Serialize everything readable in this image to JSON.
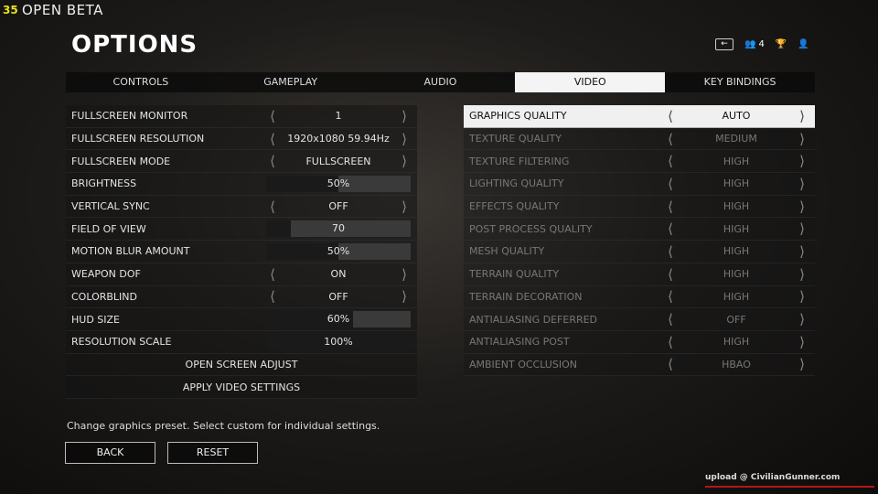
{
  "overlay": {
    "beta": "OPEN BETA",
    "fps": "35"
  },
  "header": {
    "title": "OPTIONS",
    "back_icon": "back-arrow-icon",
    "squad_count": "4"
  },
  "tabs": [
    {
      "label": "CONTROLS"
    },
    {
      "label": "GAMEPLAY"
    },
    {
      "label": "AUDIO"
    },
    {
      "label": "VIDEO",
      "selected": true
    },
    {
      "label": "KEY BINDINGS"
    }
  ],
  "left": [
    {
      "label": "FULLSCREEN MONITOR",
      "type": "select",
      "value": "1"
    },
    {
      "label": "FULLSCREEN RESOLUTION",
      "type": "select",
      "value": "1920x1080 59.94Hz"
    },
    {
      "label": "FULLSCREEN MODE",
      "type": "select",
      "value": "FULLSCREEN"
    },
    {
      "label": "BRIGHTNESS",
      "type": "slider",
      "value": "50%",
      "fraction": 0.5
    },
    {
      "label": "VERTICAL SYNC",
      "type": "select",
      "value": "OFF"
    },
    {
      "label": "FIELD OF VIEW",
      "type": "slider",
      "value": "70",
      "fraction": 0.17
    },
    {
      "label": "MOTION BLUR AMOUNT",
      "type": "slider",
      "value": "50%",
      "fraction": 0.5
    },
    {
      "label": "WEAPON DOF",
      "type": "select",
      "value": "ON"
    },
    {
      "label": "COLORBLIND",
      "type": "select",
      "value": "OFF"
    },
    {
      "label": "HUD SIZE",
      "type": "slider",
      "value": "60%",
      "fraction": 0.6
    },
    {
      "label": "RESOLUTION SCALE",
      "type": "slider",
      "value": "100%",
      "fraction": 1.0
    }
  ],
  "left_buttons": [
    "OPEN SCREEN ADJUST",
    "APPLY VIDEO SETTINGS"
  ],
  "right": [
    {
      "label": "GRAPHICS QUALITY",
      "value": "AUTO",
      "highlighted": true
    },
    {
      "label": "TEXTURE QUALITY",
      "value": "MEDIUM"
    },
    {
      "label": "TEXTURE FILTERING",
      "value": "HIGH"
    },
    {
      "label": "LIGHTING QUALITY",
      "value": "HIGH"
    },
    {
      "label": "EFFECTS QUALITY",
      "value": "HIGH"
    },
    {
      "label": "POST PROCESS QUALITY",
      "value": "HIGH"
    },
    {
      "label": "MESH QUALITY",
      "value": "HIGH"
    },
    {
      "label": "TERRAIN QUALITY",
      "value": "HIGH"
    },
    {
      "label": "TERRAIN DECORATION",
      "value": "HIGH"
    },
    {
      "label": "ANTIALIASING DEFERRED",
      "value": "OFF"
    },
    {
      "label": "ANTIALIASING POST",
      "value": "HIGH"
    },
    {
      "label": "AMBIENT OCCLUSION",
      "value": "HBAO"
    }
  ],
  "help": "Change graphics preset. Select custom for individual settings.",
  "buttons": {
    "back": "BACK",
    "reset": "RESET"
  },
  "watermark": "upload @ CivilianGunner.com",
  "colors": {
    "selected_tab": "#f4f4f4",
    "watermark_line": "#b01818",
    "fps": "#e8e020"
  }
}
